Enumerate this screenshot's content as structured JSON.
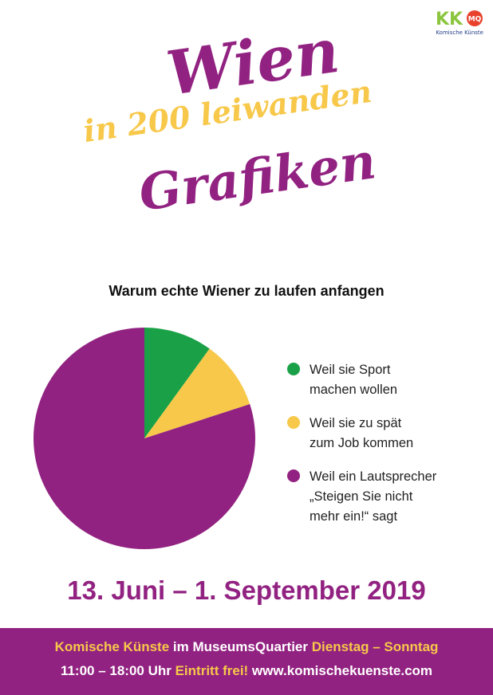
{
  "logo": {
    "marks": "KK",
    "badge": "MQ",
    "text": "Komische Künste",
    "colors": {
      "k": "#8cc63f",
      "badge": "#e8412c",
      "text": "#1f3c88"
    }
  },
  "title": {
    "line1": "Wien",
    "line2": "in 200 leiwanden",
    "line3": "Grafiken"
  },
  "chart_data": {
    "type": "pie",
    "title": "Warum echte Wiener zu laufen anfangen",
    "slices": [
      {
        "label": "Weil sie Sport\nmachen wollen",
        "value": 10,
        "color": "#1aa147"
      },
      {
        "label": "Weil sie zu spät\nzum Job kommen",
        "value": 10,
        "color": "#f7c84a"
      },
      {
        "label": "Weil ein Lautsprecher\n„Steigen Sie nicht\nmehr ein!“ sagt",
        "value": 80,
        "color": "#922281"
      }
    ],
    "legend_position": "right"
  },
  "dates": "13. Juni – 1. September 2019",
  "footer": {
    "line1": [
      {
        "text": "Komische Künste",
        "highlight": true
      },
      {
        "text": " im MuseumsQuartier ",
        "highlight": false
      },
      {
        "text": "Dienstag – Sonntag",
        "highlight": true
      }
    ],
    "line2": [
      {
        "text": "11:00 – 18:00 Uhr ",
        "highlight": false
      },
      {
        "text": "Eintritt frei!",
        "highlight": true
      },
      {
        "text": " www.komischekuenste.com",
        "highlight": false
      }
    ]
  },
  "colors": {
    "purple": "#922281",
    "yellow": "#f7c84a",
    "green": "#1aa147"
  }
}
